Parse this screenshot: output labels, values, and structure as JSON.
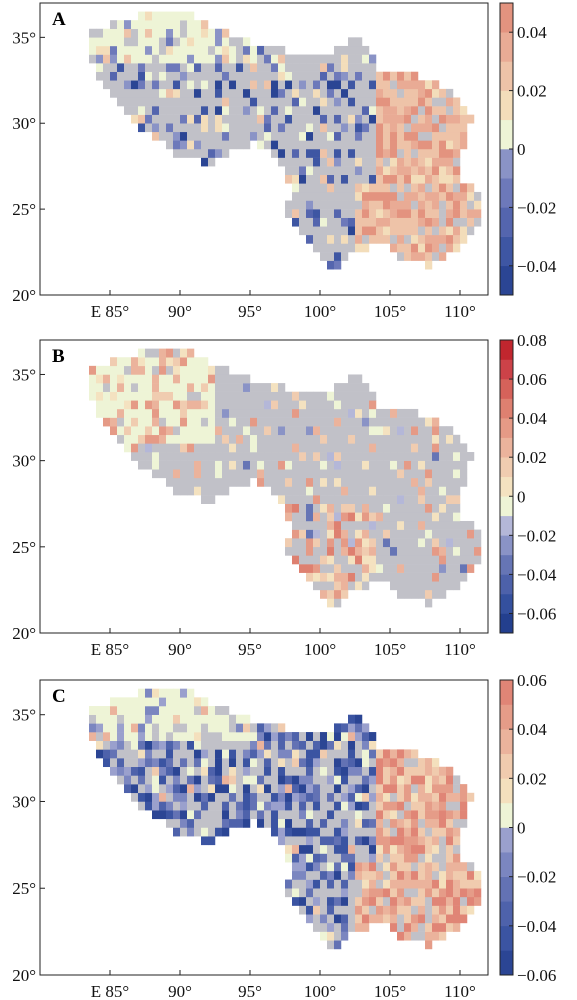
{
  "chart_data": [
    {
      "panel_label": "A",
      "type": "heatmap",
      "xlim": [
        80,
        112
      ],
      "ylim": [
        20,
        37
      ],
      "x_ticks": [
        85,
        90,
        95,
        100,
        105,
        110
      ],
      "x_tick_labels": [
        "E 85°",
        "90°",
        "95°",
        "100°",
        "105°",
        "110°"
      ],
      "y_ticks": [
        20,
        25,
        30,
        35
      ],
      "y_tick_labels": [
        "20°",
        "25°",
        "30°",
        "35°"
      ],
      "colorbar": {
        "min": -0.05,
        "max": 0.05,
        "ticks": [
          -0.04,
          -0.02,
          0,
          0.02,
          0.04
        ],
        "tick_labels": [
          "−0.04",
          "−0.02",
          "0",
          "0.02",
          "0.04"
        ],
        "colors": [
          "#2b4594",
          "#3e56a3",
          "#5465ae",
          "#6d79ba",
          "#8a93c6",
          "#eef4d6",
          "#f3ddba",
          "#eec3a8",
          "#e9ab95",
          "#e3937f"
        ]
      },
      "regions": {
        "northwest": "light",
        "central": "negative",
        "east": "positive"
      }
    },
    {
      "panel_label": "B",
      "type": "heatmap",
      "xlim": [
        80,
        112
      ],
      "ylim": [
        20,
        37
      ],
      "x_ticks": [
        85,
        90,
        95,
        100,
        105,
        110
      ],
      "x_tick_labels": [
        "E 85°",
        "90°",
        "95°",
        "100°",
        "105°",
        "110°"
      ],
      "y_ticks": [
        20,
        25,
        30,
        35
      ],
      "y_tick_labels": [
        "20°",
        "25°",
        "30°",
        "35°"
      ],
      "colorbar": {
        "min": -0.07,
        "max": 0.08,
        "ticks": [
          -0.06,
          -0.04,
          -0.02,
          0,
          0.02,
          0.04,
          0.06,
          0.08
        ],
        "tick_labels": [
          "−0.06",
          "−0.04",
          "−0.02",
          "0",
          "0.02",
          "0.04",
          "0.06",
          "0.08"
        ],
        "colors": [
          "#233f8e",
          "#34509e",
          "#4d61aa",
          "#6675b5",
          "#8a93c6",
          "#b4b7d8",
          "#eef4d6",
          "#f4e2c0",
          "#f0ccb0",
          "#ebb39c",
          "#e59a86",
          "#de8070",
          "#d6625a",
          "#cc4248",
          "#c1262e"
        ]
      },
      "regions": {
        "northwest": "light",
        "central": "grey",
        "south": "positive"
      }
    },
    {
      "panel_label": "C",
      "type": "heatmap",
      "xlim": [
        80,
        112
      ],
      "ylim": [
        20,
        37
      ],
      "x_ticks": [
        85,
        90,
        95,
        100,
        105,
        110
      ],
      "x_tick_labels": [
        "E 85°",
        "90°",
        "95°",
        "100°",
        "105°",
        "110°"
      ],
      "y_ticks": [
        20,
        25,
        30,
        35
      ],
      "y_tick_labels": [
        "20°",
        "25°",
        "30°",
        "35°"
      ],
      "colorbar": {
        "min": -0.06,
        "max": 0.06,
        "ticks": [
          -0.06,
          -0.04,
          -0.02,
          0,
          0.02,
          0.04,
          0.06
        ],
        "tick_labels": [
          "−0.06",
          "−0.04",
          "−0.02",
          "0",
          "0.02",
          "0.04",
          "0.06"
        ],
        "colors": [
          "#2b4594",
          "#3b54a2",
          "#4e62ab",
          "#6372b4",
          "#7b86c0",
          "#9aa0cd",
          "#eef4d6",
          "#f4e0bd",
          "#f0cbae",
          "#ebb39c",
          "#e59c88",
          "#e08576"
        ]
      },
      "regions": {
        "northwest": "light",
        "central": "negative",
        "east": "positive"
      }
    }
  ],
  "colors": {
    "grey": "#c1c1c8",
    "light": "#eef4d6"
  }
}
